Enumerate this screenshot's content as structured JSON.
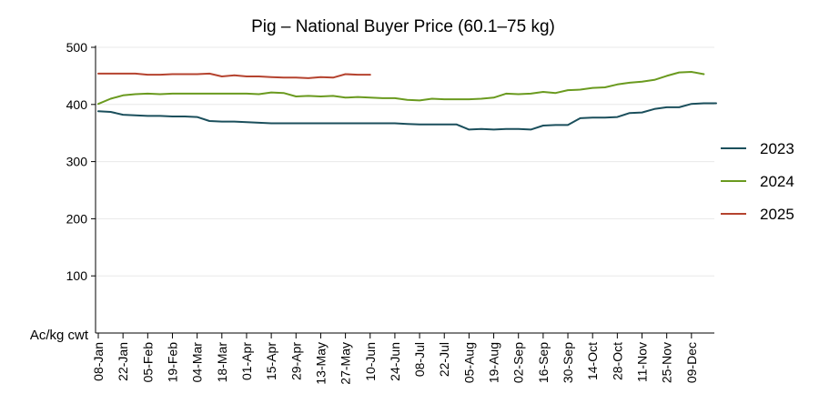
{
  "chart_data": {
    "type": "line",
    "title": "Pig – National Buyer Price (60.1–75 kg)",
    "xlabel": "",
    "ylabel": "Ac/kg cwt",
    "ylim": [
      0,
      500
    ],
    "yticks": [
      100,
      200,
      300,
      400,
      500
    ],
    "grid": true,
    "legend_position": "right",
    "x_tick_labels": [
      "08-Jan",
      "22-Jan",
      "05-Feb",
      "19-Feb",
      "04-Mar",
      "18-Mar",
      "01-Apr",
      "15-Apr",
      "29-Apr",
      "13-May",
      "27-May",
      "10-Jun",
      "24-Jun",
      "08-Jul",
      "22-Jul",
      "05-Aug",
      "19-Aug",
      "02-Sep",
      "16-Sep",
      "30-Sep",
      "14-Oct",
      "28-Oct",
      "11-Nov",
      "25-Nov",
      "09-Dec"
    ],
    "series": [
      {
        "name": "2023",
        "color": "#1b4f5c",
        "values": [
          388,
          387,
          382,
          381,
          380,
          380,
          379,
          379,
          378,
          371,
          370,
          370,
          369,
          368,
          367,
          367,
          367,
          367,
          367,
          367,
          367,
          367,
          367,
          367,
          367,
          366,
          365,
          365,
          365,
          365,
          356,
          357,
          356,
          357,
          357,
          356,
          363,
          364,
          364,
          376,
          377,
          377,
          378,
          385,
          386,
          392,
          395,
          395,
          401,
          402,
          402
        ]
      },
      {
        "name": "2024",
        "color": "#6a9a1f",
        "values": [
          401,
          410,
          416,
          418,
          419,
          418,
          419,
          419,
          419,
          419,
          419,
          419,
          419,
          418,
          421,
          420,
          414,
          415,
          414,
          415,
          412,
          413,
          412,
          411,
          411,
          408,
          407,
          410,
          409,
          409,
          409,
          410,
          412,
          419,
          418,
          419,
          422,
          420,
          425,
          426,
          429,
          430,
          435,
          438,
          440,
          443,
          450,
          456,
          457,
          453
        ]
      },
      {
        "name": "2025",
        "color": "#b5432f",
        "values": [
          454,
          454,
          454,
          454,
          452,
          452,
          453,
          453,
          453,
          454,
          449,
          451,
          449,
          449,
          448,
          447,
          447,
          446,
          448,
          447,
          453,
          452,
          452
        ]
      }
    ]
  }
}
